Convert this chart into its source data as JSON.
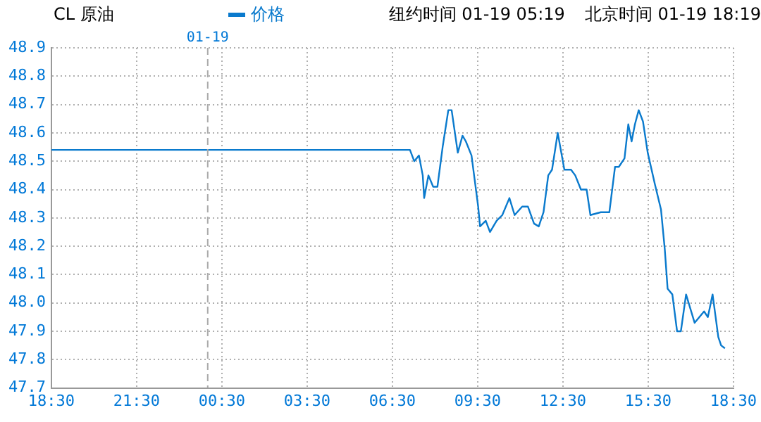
{
  "chart_data": {
    "type": "line",
    "title": "CL 原油",
    "annotations": [
      "纽约时间 01-19 05:19",
      "北京时间 01-19 18:19"
    ],
    "x": [
      "--01-18T18:30",
      "--01-19T07:07",
      "--01-19T07:16",
      "--01-19T07:26",
      "--01-19T07:34",
      "--01-19T07:37",
      "--01-19T07:46",
      "--01-19T07:56",
      "--01-19T08:05",
      "--01-19T08:16",
      "--01-19T08:28",
      "--01-19T08:35",
      "--01-19T08:48",
      "--01-19T08:58",
      "--01-19T09:05",
      "--01-19T09:17",
      "--01-19T09:31",
      "--01-19T09:35",
      "--01-19T09:47",
      "--01-19T09:56",
      "--01-19T10:10",
      "--01-19T10:22",
      "--01-19T10:37",
      "--01-19T10:48",
      "--01-19T11:04",
      "--01-19T11:16",
      "--01-19T11:29",
      "--01-19T11:39",
      "--01-19T11:49",
      "--01-19T11:59",
      "--01-19T12:07",
      "--01-19T12:19",
      "--01-19T12:33",
      "--01-19T12:47",
      "--01-19T12:56",
      "--01-19T13:08",
      "--01-19T13:20",
      "--01-19T13:28",
      "--01-19T13:50",
      "--01-19T14:08",
      "--01-19T14:20",
      "--01-19T14:28",
      "--01-19T14:40",
      "--01-19T14:48",
      "--01-19T14:55",
      "--01-19T15:02",
      "--01-19T15:10",
      "--01-19T15:19",
      "--01-19T15:29",
      "--01-19T15:44",
      "--01-19T15:57",
      "--01-19T16:05",
      "--01-19T16:11",
      "--01-19T16:21",
      "--01-19T16:31",
      "--01-19T16:39",
      "--01-19T16:50",
      "--01-19T17:08",
      "--01-19T17:28",
      "--01-19T17:36",
      "--01-19T17:46",
      "--01-19T17:58",
      "--01-19T18:04",
      "--01-19T18:12"
    ],
    "series": [
      {
        "name": "价格",
        "color": "#0a7acd",
        "values": [
          48.54,
          48.54,
          48.5,
          48.52,
          48.45,
          48.37,
          48.45,
          48.41,
          48.41,
          48.55,
          48.68,
          48.68,
          48.53,
          48.59,
          48.57,
          48.52,
          48.34,
          48.27,
          48.29,
          48.25,
          48.29,
          48.31,
          48.37,
          48.31,
          48.34,
          48.34,
          48.28,
          48.27,
          48.32,
          48.45,
          48.47,
          48.6,
          48.47,
          48.47,
          48.45,
          48.4,
          48.4,
          48.31,
          48.32,
          48.32,
          48.48,
          48.48,
          48.51,
          48.63,
          48.57,
          48.63,
          48.68,
          48.64,
          48.53,
          48.42,
          48.33,
          48.19,
          48.05,
          48.03,
          47.9,
          47.9,
          48.03,
          47.93,
          47.97,
          47.95,
          48.03,
          47.88,
          47.85,
          47.84
        ]
      }
    ],
    "xlim": [
      "--01-18T18:30",
      "--01-19T18:30"
    ],
    "xticks": [
      {
        "value": "--01-18T18:30",
        "label": "18:30"
      },
      {
        "value": "--01-18T21:30",
        "label": "21:30"
      },
      {
        "value": "--01-19T00:30",
        "label": "00:30"
      },
      {
        "value": "--01-19T03:30",
        "label": "03:30"
      },
      {
        "value": "--01-19T06:30",
        "label": "06:30"
      },
      {
        "value": "--01-19T09:30",
        "label": "09:30"
      },
      {
        "value": "--01-19T12:30",
        "label": "12:30"
      },
      {
        "value": "--01-19T15:30",
        "label": "15:30"
      },
      {
        "value": "--01-19T18:30",
        "label": "18:30"
      }
    ],
    "ylim": [
      47.7,
      48.9
    ],
    "yticks": [
      {
        "value": 47.7,
        "label": "47.7"
      },
      {
        "value": 47.8,
        "label": "47.8"
      },
      {
        "value": 47.9,
        "label": "47.9"
      },
      {
        "value": 48.0,
        "label": "48.0"
      },
      {
        "value": 48.1,
        "label": "48.1"
      },
      {
        "value": 48.2,
        "label": "48.2"
      },
      {
        "value": 48.3,
        "label": "48.3"
      },
      {
        "value": 48.4,
        "label": "48.4"
      },
      {
        "value": 48.5,
        "label": "48.5"
      },
      {
        "value": 48.6,
        "label": "48.6"
      },
      {
        "value": 48.7,
        "label": "48.7"
      },
      {
        "value": 48.8,
        "label": "48.8"
      },
      {
        "value": 48.9,
        "label": "48.9"
      }
    ],
    "ref_lines": [
      {
        "axis": "x",
        "value": "--01-19T00:00",
        "label": "01-19",
        "color": "#aaaaaa",
        "line_style": "dashed"
      }
    ],
    "grid": true,
    "legend": "top",
    "marker": "none",
    "line_style": "solid"
  }
}
